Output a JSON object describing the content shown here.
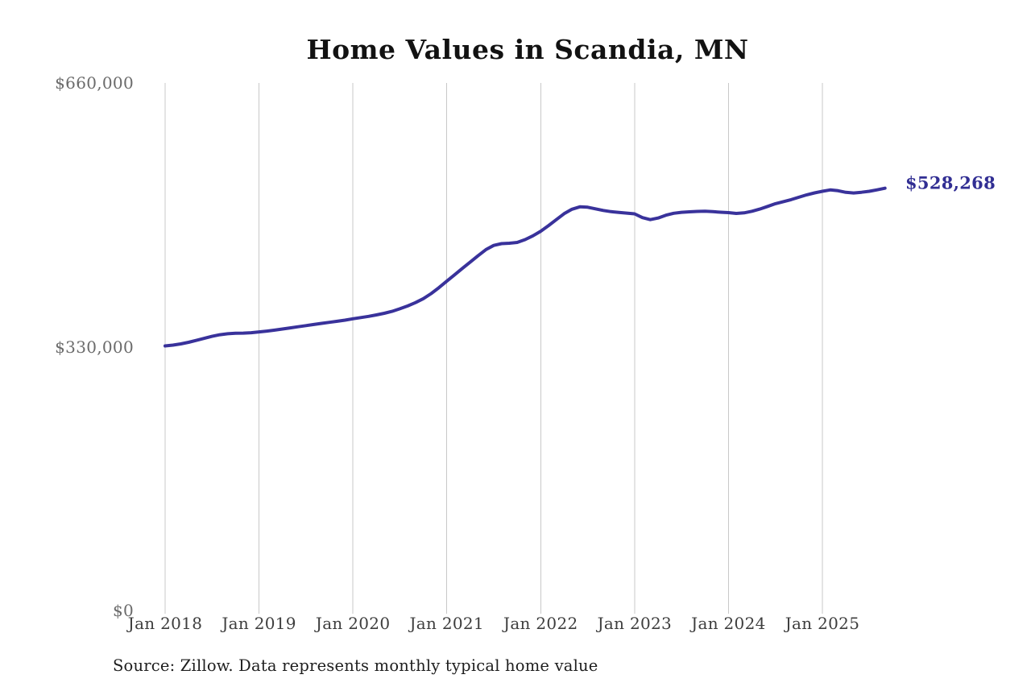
{
  "title": "Home Values in Scandia, MN",
  "end_label": "$528,268",
  "source_note": "Source: Zillow. Data represents monthly typical home value",
  "colors": {
    "line": "#39329b",
    "end_label_text": "#312e93",
    "grid": "#c8c8c8",
    "y_tick_text": "#6b6b6b",
    "x_tick_text": "#3e3e3e",
    "title_text": "#121212",
    "source_text": "#1e1e1e",
    "background": "#ffffff"
  },
  "chart_data": {
    "type": "line",
    "title": "Home Values in Scandia, MN",
    "xlabel": "",
    "ylabel": "",
    "ylim": [
      0,
      660000
    ],
    "grid": "vertical-only",
    "legend": "none",
    "frequency": "monthly",
    "x_start": "2018-01",
    "x_end": "2025-09",
    "final_value": 528268,
    "y_ticks": [
      {
        "value": 0,
        "label": "$0"
      },
      {
        "value": 330000,
        "label": "$330,000"
      },
      {
        "value": 660000,
        "label": "$660,000"
      }
    ],
    "x_ticks": [
      {
        "label": "Jan 2018"
      },
      {
        "label": "Jan 2019"
      },
      {
        "label": "Jan 2020"
      },
      {
        "label": "Jan 2021"
      },
      {
        "label": "Jan 2022"
      },
      {
        "label": "Jan 2023"
      },
      {
        "label": "Jan 2024"
      },
      {
        "label": "Jan 2025"
      }
    ],
    "series": [
      {
        "name": "Typical home value",
        "values": [
          331000,
          332000,
          333500,
          335500,
          338000,
          340500,
          343000,
          345000,
          346200,
          346800,
          347000,
          347500,
          348500,
          349500,
          350800,
          352200,
          353600,
          355000,
          356400,
          357800,
          359200,
          360500,
          361800,
          363300,
          365000,
          366500,
          368000,
          369800,
          371800,
          374200,
          377500,
          381000,
          385200,
          390200,
          396500,
          404000,
          412000,
          420000,
          428000,
          436000,
          444000,
          451500,
          456800,
          459000,
          459500,
          460500,
          464000,
          468800,
          474500,
          481500,
          489000,
          496500,
          502000,
          505000,
          504500,
          502500,
          500500,
          499000,
          498000,
          497200,
          496300,
          491500,
          489000,
          491000,
          494500,
          497000,
          498200,
          498800,
          499300,
          499500,
          499000,
          498300,
          497800,
          496800,
          497500,
          499500,
          502200,
          505500,
          509000,
          511500,
          514000,
          517000,
          520000,
          522500,
          524500,
          526200,
          525200,
          523200,
          522400,
          523300,
          524500,
          526300,
          528268
        ]
      }
    ]
  }
}
